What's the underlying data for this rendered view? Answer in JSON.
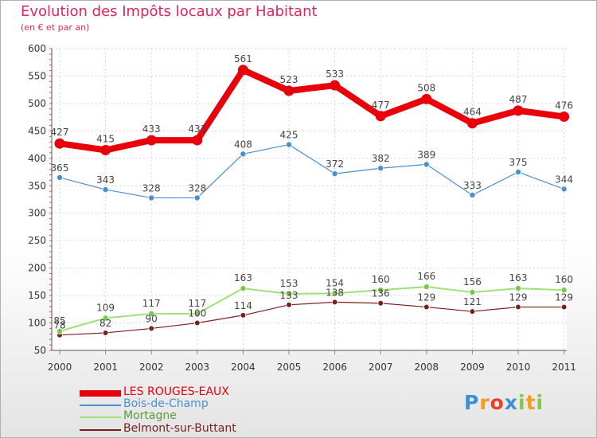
{
  "chart_data": {
    "type": "line",
    "title": "Evolution des Impôts locaux par Habitant",
    "subtitle": "(en € et par an)",
    "xlabel": "",
    "ylabel": "",
    "ylim": [
      50,
      600
    ],
    "yticks": [
      50,
      100,
      150,
      200,
      250,
      300,
      350,
      400,
      450,
      500,
      550,
      600
    ],
    "categories": [
      "2000",
      "2001",
      "2002",
      "2003",
      "2004",
      "2005",
      "2006",
      "2007",
      "2008",
      "2009",
      "2010",
      "2011"
    ],
    "series": [
      {
        "name": "LES ROUGES-EAUX",
        "values": [
          427,
          415,
          433,
          433,
          561,
          523,
          533,
          477,
          508,
          464,
          487,
          476
        ],
        "color": "#e8000b"
      },
      {
        "name": "Bois-de-Champ",
        "values": [
          365,
          343,
          328,
          328,
          408,
          425,
          372,
          382,
          389,
          333,
          375,
          344
        ],
        "color": "#4a8fd0"
      },
      {
        "name": "Mortagne",
        "values": [
          85,
          109,
          117,
          117,
          163,
          153,
          154,
          160,
          166,
          156,
          163,
          160
        ],
        "color": "#9fe079"
      },
      {
        "name": "Belmont-sur-Buttant",
        "values": [
          78,
          82,
          90,
          100,
          114,
          133,
          138,
          136,
          129,
          121,
          129,
          129
        ],
        "color": "#7a1e1e"
      }
    ],
    "legend_position": "bottom-left"
  },
  "logo": {
    "letters": [
      "P",
      "r",
      "o",
      "x",
      "i",
      "t",
      "i"
    ]
  }
}
